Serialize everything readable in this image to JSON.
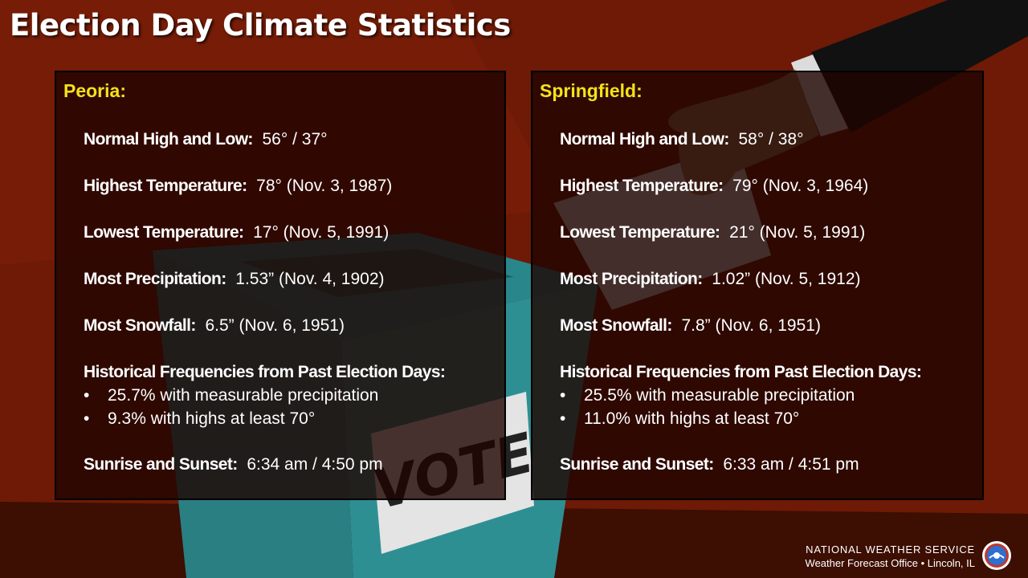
{
  "title": "Election Day Climate Statistics",
  "colors": {
    "background": "#6e1a06",
    "city_label": "#f5e21a",
    "text": "#ffffff",
    "ballot_box": "#2e8f93"
  },
  "ballot_text": "VOTE",
  "peoria": {
    "city": "Peoria:",
    "normal": {
      "label": "Normal High and Low:",
      "value": "56° / 37°"
    },
    "highest": {
      "label": "Highest Temperature:",
      "value": "78°  (Nov. 3, 1987)"
    },
    "lowest": {
      "label": "Lowest Temperature:",
      "value": "17°  (Nov. 5, 1991)"
    },
    "precip": {
      "label": "Most Precipitation:",
      "value": "1.53” (Nov. 4, 1902)"
    },
    "snow": {
      "label": "Most Snowfall:",
      "value": "6.5” (Nov. 6, 1951)"
    },
    "freq_heading": "Historical Frequencies from Past Election Days:",
    "freq": [
      "25.7% with measurable precipitation",
      "9.3% with highs at least 70°"
    ],
    "sun": {
      "label": "Sunrise and Sunset:",
      "value": "6:34 am / 4:50 pm"
    }
  },
  "springfield": {
    "city": "Springfield:",
    "normal": {
      "label": "Normal High and Low:",
      "value": "58° / 38°"
    },
    "highest": {
      "label": "Highest Temperature:",
      "value": "79°  (Nov. 3, 1964)"
    },
    "lowest": {
      "label": "Lowest Temperature:",
      "value": "21°  (Nov. 5, 1991)"
    },
    "precip": {
      "label": "Most Precipitation:",
      "value": "1.02” (Nov. 5, 1912)"
    },
    "snow": {
      "label": "Most Snowfall:",
      "value": "7.8” (Nov. 6, 1951)"
    },
    "freq_heading": "Historical Frequencies from Past Election Days:",
    "freq": [
      "25.5% with measurable precipitation",
      "11.0% with highs at least 70°"
    ],
    "sun": {
      "label": "Sunrise and Sunset:",
      "value": "6:33 am / 4:51 pm"
    }
  },
  "footer": {
    "org": "NATIONAL WEATHER SERVICE",
    "office": "Weather Forecast Office • Lincoln, IL"
  },
  "bullet": "•"
}
